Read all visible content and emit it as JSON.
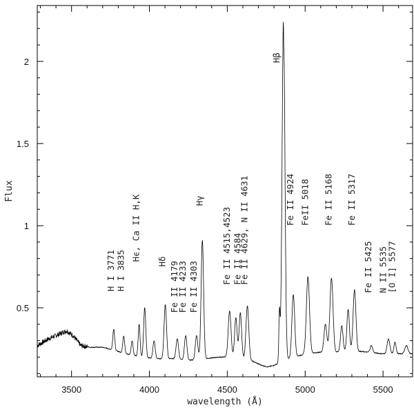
{
  "chart_data": {
    "type": "line",
    "title": "",
    "xlabel": "wavelength (Å)",
    "ylabel": "Flux",
    "xlim": [
      3280,
      5690
    ],
    "ylim": [
      0.08,
      2.34
    ],
    "grid": false,
    "x_ticks": [
      {
        "value": 3500,
        "label": "3500"
      },
      {
        "value": 4000,
        "label": "4000"
      },
      {
        "value": 4500,
        "label": "4500"
      },
      {
        "value": 5000,
        "label": "5000"
      },
      {
        "value": 5500,
        "label": "5500"
      }
    ],
    "y_ticks": [
      {
        "value": 0.5,
        "label": "0.5"
      },
      {
        "value": 1,
        "label": "1"
      },
      {
        "value": 1.5,
        "label": "1.5"
      },
      {
        "value": 2,
        "label": "2"
      }
    ],
    "series": [
      {
        "color": "#000000",
        "continuum": [
          [
            3280,
            0.27
          ],
          [
            3350,
            0.31
          ],
          [
            3420,
            0.34
          ],
          [
            3470,
            0.36
          ],
          [
            3510,
            0.33
          ],
          [
            3560,
            0.27
          ],
          [
            3620,
            0.26
          ],
          [
            3700,
            0.26
          ],
          [
            3780,
            0.24
          ],
          [
            3850,
            0.22
          ],
          [
            3950,
            0.2
          ],
          [
            4050,
            0.19
          ],
          [
            4150,
            0.19
          ],
          [
            4250,
            0.18
          ],
          [
            4350,
            0.19
          ],
          [
            4450,
            0.2
          ],
          [
            4550,
            0.2
          ],
          [
            4650,
            0.18
          ],
          [
            4720,
            0.15
          ],
          [
            4760,
            0.14
          ],
          [
            4800,
            0.15
          ],
          [
            4900,
            0.19
          ],
          [
            5000,
            0.22
          ],
          [
            5100,
            0.23
          ],
          [
            5200,
            0.23
          ],
          [
            5300,
            0.24
          ],
          [
            5400,
            0.23
          ],
          [
            5500,
            0.22
          ],
          [
            5600,
            0.22
          ],
          [
            5690,
            0.22
          ]
        ],
        "emission_lines": [
          {
            "x": 3771,
            "peak": 0.37,
            "width": 6
          },
          {
            "x": 3835,
            "peak": 0.33,
            "width": 6
          },
          {
            "x": 3889,
            "peak": 0.3,
            "width": 6
          },
          {
            "x": 3934,
            "peak": 0.4,
            "width": 6
          },
          {
            "x": 3970,
            "peak": 0.5,
            "width": 7
          },
          {
            "x": 4030,
            "peak": 0.3,
            "width": 7
          },
          {
            "x": 4102,
            "peak": 0.52,
            "width": 8
          },
          {
            "x": 4179,
            "peak": 0.31,
            "width": 8
          },
          {
            "x": 4233,
            "peak": 0.33,
            "width": 8
          },
          {
            "x": 4303,
            "peak": 0.33,
            "width": 8
          },
          {
            "x": 4340,
            "peak": 0.91,
            "width": 8
          },
          {
            "x": 4515,
            "peak": 0.48,
            "width": 9
          },
          {
            "x": 4555,
            "peak": 0.44,
            "width": 8
          },
          {
            "x": 4584,
            "peak": 0.47,
            "width": 8
          },
          {
            "x": 4629,
            "peak": 0.51,
            "width": 9
          },
          {
            "x": 4835,
            "peak": 0.47,
            "width": 4
          },
          {
            "x": 4861,
            "peak": 2.28,
            "width": 9
          },
          {
            "x": 4924,
            "peak": 0.58,
            "width": 9
          },
          {
            "x": 5018,
            "peak": 0.69,
            "width": 10
          },
          {
            "x": 5130,
            "peak": 0.4,
            "width": 9
          },
          {
            "x": 5169,
            "peak": 0.68,
            "width": 10
          },
          {
            "x": 5235,
            "peak": 0.39,
            "width": 8
          },
          {
            "x": 5276,
            "peak": 0.49,
            "width": 8
          },
          {
            "x": 5317,
            "peak": 0.61,
            "width": 9
          },
          {
            "x": 5425,
            "peak": 0.27,
            "width": 8
          },
          {
            "x": 5535,
            "peak": 0.31,
            "width": 9
          },
          {
            "x": 5577,
            "peak": 0.29,
            "width": 7
          },
          {
            "x": 5650,
            "peak": 0.27,
            "width": 10
          }
        ]
      }
    ],
    "annotations": [
      {
        "text": "H I 3771",
        "x": 3771,
        "y": 0.6
      },
      {
        "text": "H I 3835",
        "x": 3835,
        "y": 0.6
      },
      {
        "text": "Hϵ, Ca II H,K",
        "x": 3934,
        "y": 0.78
      },
      {
        "text": "Hδ",
        "x": 4102,
        "y": 0.75
      },
      {
        "text": "Fe II 4179",
        "x": 4179,
        "y": 0.47
      },
      {
        "text": "Fe II 4233",
        "x": 4233,
        "y": 0.47
      },
      {
        "text": "Fe II 4303",
        "x": 4303,
        "y": 0.47
      },
      {
        "text": "Hγ",
        "x": 4340,
        "y": 1.12
      },
      {
        "text": "Fe II 4515,4523",
        "x": 4515,
        "y": 0.64
      },
      {
        "text": "Fe II 4584",
        "x": 4584,
        "y": 0.64
      },
      {
        "text": "Fe II 4629, N II 4631",
        "x": 4629,
        "y": 0.64
      },
      {
        "text": "Hβ",
        "x": 4835,
        "y": 1.99
      },
      {
        "text": "Fe II 4924",
        "x": 4924,
        "y": 1.0
      },
      {
        "text": "FeII 5018",
        "x": 5018,
        "y": 1.0
      },
      {
        "text": "Fe II 5168",
        "x": 5169,
        "y": 1.0
      },
      {
        "text": "Fe II 5317",
        "x": 5317,
        "y": 1.0
      },
      {
        "text": "Fe II 5425",
        "x": 5425,
        "y": 0.59
      },
      {
        "text": "N II 5535",
        "x": 5520,
        "y": 0.59
      },
      {
        "text": "[O I] 5577",
        "x": 5577,
        "y": 0.59
      }
    ]
  }
}
